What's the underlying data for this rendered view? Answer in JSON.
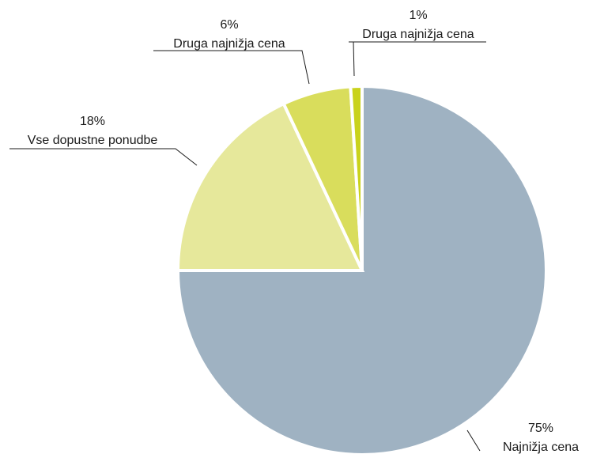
{
  "chart_data": {
    "type": "pie",
    "slices": [
      {
        "label": "Najnižja cena",
        "value": 75,
        "value_label": "75%",
        "color": "#9fb2c2"
      },
      {
        "label": "Vse dopustne ponudbe",
        "value": 18,
        "value_label": "18%",
        "color": "#e6e89b"
      },
      {
        "label": "Druga najnižja cena",
        "value": 6,
        "value_label": "6%",
        "color": "#d9dd5c"
      },
      {
        "label": "Druga najnižja cena",
        "value": 1,
        "value_label": "1%",
        "color": "#c9d21c"
      }
    ],
    "start_angle": "12 o'clock",
    "direction": "clockwise",
    "legend": "none"
  }
}
